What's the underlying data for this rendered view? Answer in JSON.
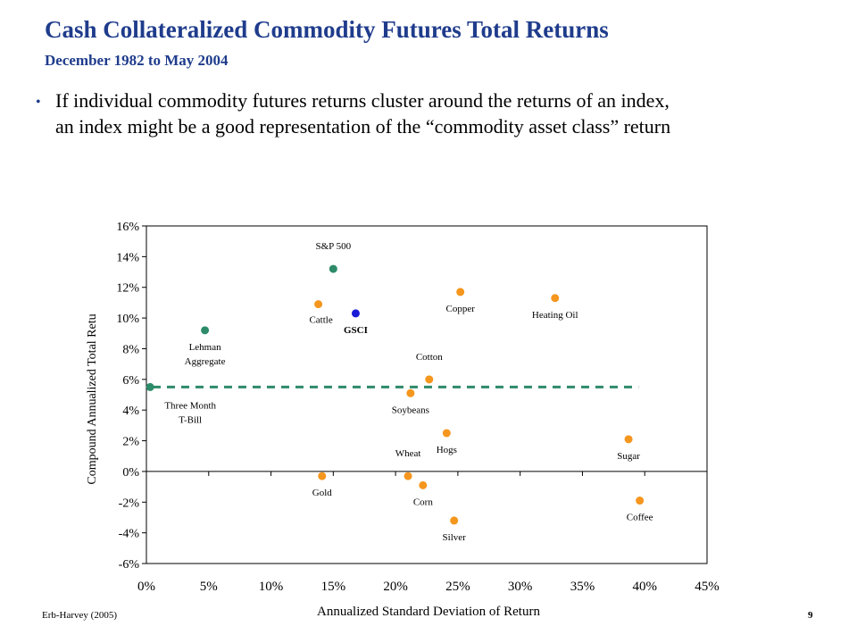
{
  "header": {
    "title": "Cash Collateralized Commodity Futures Total Returns",
    "subtitle": "December  1982 to May 2004"
  },
  "bullet": {
    "line1": "If individual commodity futures returns cluster around the returns of an index,",
    "line2": "an index might be a good representation of the “commodity asset class” return"
  },
  "footer": {
    "source": "Erb-Harvey (2005)",
    "page": "9"
  },
  "colors": {
    "index": "#2e8b6a",
    "gsci": "#1a1ad6",
    "commodity": "#f5961e",
    "text": "#1f3c8c"
  },
  "chart_data": {
    "type": "scatter",
    "xlabel": "Annualized Standard Deviation of Return",
    "ylabel": "Compound Annualized Total Retu",
    "xlim": [
      0,
      45
    ],
    "ylim": [
      -6,
      16
    ],
    "xticks": [
      0,
      5,
      10,
      15,
      20,
      25,
      30,
      35,
      40,
      45
    ],
    "xtick_labels": [
      "0%",
      "5%",
      "10%",
      "15%",
      "20%",
      "25%",
      "30%",
      "35%",
      "40%",
      "45%"
    ],
    "yticks": [
      -6,
      -4,
      -2,
      0,
      2,
      4,
      6,
      8,
      10,
      12,
      14,
      16
    ],
    "ytick_labels": [
      "-6%",
      "-4%",
      "-2%",
      "0%",
      "2%",
      "4%",
      "6%",
      "8%",
      "10%",
      "12%",
      "14%",
      "16%"
    ],
    "grid": false,
    "legend": "none",
    "trend_line": {
      "x": [
        0.5,
        39.5
      ],
      "y": [
        5.5,
        5.5
      ],
      "style": "dashed"
    },
    "points": [
      {
        "label": "S&P 500",
        "x": 15.0,
        "y": 13.2,
        "group": "index",
        "label_pos": "above"
      },
      {
        "label": "Lehman Aggregate",
        "lines": [
          "Lehman",
          "Aggregate"
        ],
        "x": 4.7,
        "y": 9.2,
        "group": "index",
        "label_pos": "below"
      },
      {
        "label": "Three Month T-Bill",
        "lines": [
          "Three Month",
          "T-Bill"
        ],
        "x": 0.3,
        "y": 5.5,
        "group": "index",
        "label_pos": "below-right"
      },
      {
        "label": "GSCI",
        "x": 16.8,
        "y": 10.3,
        "group": "gsci",
        "label_pos": "below",
        "bold": true
      },
      {
        "label": "Cattle",
        "x": 13.8,
        "y": 10.9,
        "group": "commodity",
        "label_pos": "below-left"
      },
      {
        "label": "Copper",
        "x": 25.2,
        "y": 11.7,
        "group": "commodity",
        "label_pos": "below"
      },
      {
        "label": "Heating Oil",
        "x": 32.8,
        "y": 11.3,
        "group": "commodity",
        "label_pos": "below"
      },
      {
        "label": "Cotton",
        "x": 22.7,
        "y": 6.0,
        "group": "commodity",
        "label_pos": "above"
      },
      {
        "label": "Soybeans",
        "x": 21.2,
        "y": 5.1,
        "group": "commodity",
        "label_pos": "below"
      },
      {
        "label": "Hogs",
        "x": 24.1,
        "y": 2.5,
        "group": "commodity",
        "label_pos": "below"
      },
      {
        "label": "Sugar",
        "x": 38.7,
        "y": 2.1,
        "group": "commodity",
        "label_pos": "below"
      },
      {
        "label": "Wheat",
        "x": 21.0,
        "y": -0.3,
        "group": "commodity",
        "label_pos": "above"
      },
      {
        "label": "Gold",
        "x": 14.1,
        "y": -0.3,
        "group": "commodity",
        "label_pos": "below"
      },
      {
        "label": "Corn",
        "x": 22.2,
        "y": -0.9,
        "group": "commodity",
        "label_pos": "below"
      },
      {
        "label": "Coffee",
        "x": 39.6,
        "y": -1.9,
        "group": "commodity",
        "label_pos": "below"
      },
      {
        "label": "Silver",
        "x": 24.7,
        "y": -3.2,
        "group": "commodity",
        "label_pos": "below"
      }
    ]
  }
}
